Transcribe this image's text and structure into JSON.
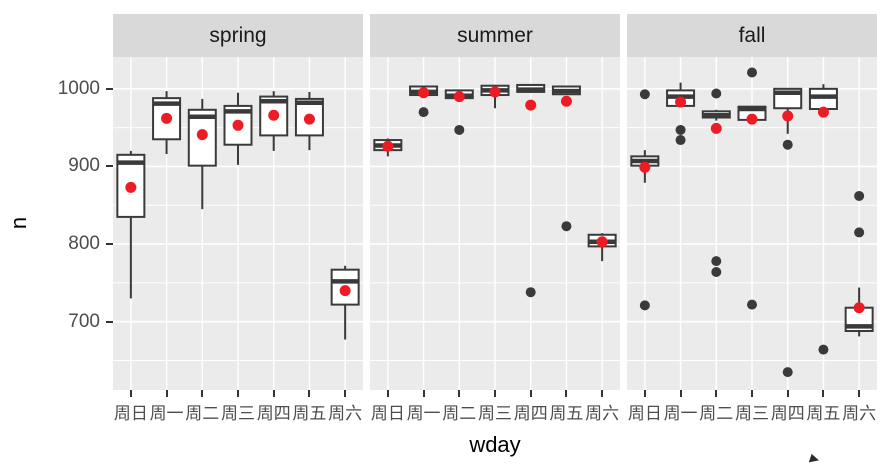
{
  "figure": {
    "x_axis_title": "wday",
    "y_axis_title": "n"
  },
  "colors": {
    "panel_background": "#EBEBEB",
    "strip_background": "#D9D9D9",
    "gridline": "#FFFFFF",
    "box_stroke": "#3A3A3A",
    "box_fill": "#FFFFFF",
    "outlier_point": "#3A3A3A",
    "mean_point": "#ED1C24",
    "tick_label": "#4D4D4D"
  },
  "chart_data": {
    "type": "boxplot",
    "title": "",
    "xlabel": "wday",
    "ylabel": "n",
    "facets": [
      "spring",
      "summer",
      "fall"
    ],
    "categories": [
      "周日",
      "周一",
      "周二",
      "周三",
      "周四",
      "周五",
      "周六"
    ],
    "y_ticks": [
      700,
      800,
      900,
      1000
    ],
    "y_minor_ticks": [
      650,
      750,
      850,
      950
    ],
    "ylim": [
      612,
      1041
    ],
    "grid": "white major+minor horizontal lines and vertical category lines on grey panel",
    "legend": "none",
    "mean_points": "red dots show group means",
    "series": [
      {
        "facet": "spring",
        "boxes": [
          {
            "wday": "周日",
            "low": 730,
            "q1": 835,
            "median": 905,
            "q3": 915,
            "high": 920,
            "mean": 873,
            "outliers": []
          },
          {
            "wday": "周一",
            "low": 916,
            "q1": 935,
            "median": 981,
            "q3": 988,
            "high": 997,
            "mean": 962,
            "outliers": []
          },
          {
            "wday": "周二",
            "low": 845,
            "q1": 901,
            "median": 964,
            "q3": 973,
            "high": 987,
            "mean": 941,
            "outliers": []
          },
          {
            "wday": "周三",
            "low": 902,
            "q1": 928,
            "median": 971,
            "q3": 978,
            "high": 995,
            "mean": 953,
            "outliers": []
          },
          {
            "wday": "周四",
            "low": 920,
            "q1": 940,
            "median": 984,
            "q3": 990,
            "high": 997,
            "mean": 966,
            "outliers": []
          },
          {
            "wday": "周五",
            "low": 921,
            "q1": 940,
            "median": 982,
            "q3": 987,
            "high": 996,
            "mean": 961,
            "outliers": []
          },
          {
            "wday": "周六",
            "low": 677,
            "q1": 722,
            "median": 752,
            "q3": 767,
            "high": 772,
            "mean": 740,
            "outliers": []
          }
        ]
      },
      {
        "facet": "summer",
        "boxes": [
          {
            "wday": "周日",
            "low": 913,
            "q1": 921,
            "median": 927,
            "q3": 934,
            "high": 936,
            "mean": 926,
            "outliers": []
          },
          {
            "wday": "周一",
            "low": 990,
            "q1": 992,
            "median": 996,
            "q3": 1003,
            "high": 1004,
            "mean": 995,
            "outliers": [
              970
            ]
          },
          {
            "wday": "周二",
            "low": 986,
            "q1": 988,
            "median": 991,
            "q3": 998,
            "high": 999,
            "mean": 990,
            "outliers": [
              947
            ]
          },
          {
            "wday": "周三",
            "low": 975,
            "q1": 992,
            "median": 998,
            "q3": 1004,
            "high": 1005,
            "mean": 996,
            "outliers": []
          },
          {
            "wday": "周四",
            "low": 995,
            "q1": 996,
            "median": 999,
            "q3": 1005,
            "high": 1006,
            "mean": 979,
            "outliers": [
              738
            ]
          },
          {
            "wday": "周五",
            "low": 992,
            "q1": 993,
            "median": 997,
            "q3": 1003,
            "high": 1004,
            "mean": 984,
            "outliers": [
              823
            ]
          },
          {
            "wday": "周六",
            "low": 778,
            "q1": 797,
            "median": 803,
            "q3": 812,
            "high": 814,
            "mean": 803,
            "outliers": []
          }
        ]
      },
      {
        "facet": "fall",
        "boxes": [
          {
            "wday": "周日",
            "low": 879,
            "q1": 901,
            "median": 907,
            "q3": 913,
            "high": 921,
            "mean": 899,
            "outliers": [
              993,
              721
            ]
          },
          {
            "wday": "周一",
            "low": 978,
            "q1": 978,
            "median": 990,
            "q3": 998,
            "high": 1008,
            "mean": 983,
            "outliers": [
              947,
              934
            ]
          },
          {
            "wday": "周二",
            "low": 959,
            "q1": 963,
            "median": 966,
            "q3": 971,
            "high": 973,
            "mean": 949,
            "outliers": [
              994,
              778,
              764
            ]
          },
          {
            "wday": "周三",
            "low": 958,
            "q1": 960,
            "median": 974,
            "q3": 977,
            "high": 978,
            "mean": 961,
            "outliers": [
              1021,
              722
            ]
          },
          {
            "wday": "周四",
            "low": 942,
            "q1": 975,
            "median": 995,
            "q3": 1000,
            "high": 1001,
            "mean": 965,
            "outliers": [
              928,
              635
            ]
          },
          {
            "wday": "周五",
            "low": 974,
            "q1": 974,
            "median": 990,
            "q3": 1000,
            "high": 1006,
            "mean": 970,
            "outliers": [
              664
            ]
          },
          {
            "wday": "周六",
            "low": 681,
            "q1": 688,
            "median": 694,
            "q3": 718,
            "high": 744,
            "mean": 718,
            "outliers": [
              862,
              815
            ]
          }
        ]
      }
    ]
  }
}
